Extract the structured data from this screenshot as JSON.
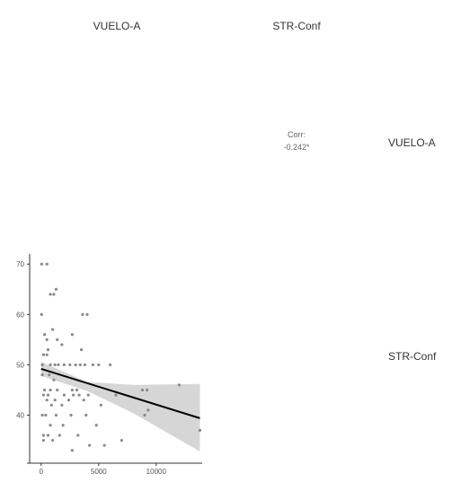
{
  "matrix": {
    "col_labels": [
      "VUELO-A",
      "STR-Conf"
    ],
    "row_labels": [
      "VUELO-A",
      "STR-Conf"
    ],
    "corr_title": "Corr:",
    "corr_value": "-0.242*"
  },
  "chart_data": {
    "type": "scatter",
    "xlabel": "",
    "ylabel": "",
    "xlim": [
      -1000,
      14000
    ],
    "ylim": [
      31,
      72
    ],
    "x_ticks": [
      "0",
      "5000",
      "10000"
    ],
    "y_ticks": [
      "40",
      "50",
      "60",
      "70"
    ],
    "grid": false,
    "points": [
      [
        50,
        70
      ],
      [
        500,
        70
      ],
      [
        40,
        60
      ],
      [
        300,
        56
      ],
      [
        200,
        52
      ],
      [
        500,
        52
      ],
      [
        100,
        50
      ],
      [
        800,
        50
      ],
      [
        1200,
        50
      ],
      [
        1500,
        50
      ],
      [
        2000,
        50
      ],
      [
        2500,
        50
      ],
      [
        3000,
        50
      ],
      [
        3400,
        50
      ],
      [
        3800,
        50
      ],
      [
        4500,
        50
      ],
      [
        5000,
        50
      ],
      [
        6000,
        50
      ],
      [
        100,
        48
      ],
      [
        700,
        48
      ],
      [
        1100,
        47
      ],
      [
        300,
        45
      ],
      [
        800,
        45
      ],
      [
        1400,
        45
      ],
      [
        2700,
        45
      ],
      [
        3100,
        45
      ],
      [
        200,
        44
      ],
      [
        600,
        44
      ],
      [
        2000,
        44
      ],
      [
        2800,
        44
      ],
      [
        3300,
        44
      ],
      [
        4100,
        44
      ],
      [
        6500,
        44
      ],
      [
        500,
        43
      ],
      [
        1200,
        43
      ],
      [
        2400,
        43
      ],
      [
        3700,
        43
      ],
      [
        900,
        42
      ],
      [
        1800,
        42
      ],
      [
        5200,
        42
      ],
      [
        100,
        40
      ],
      [
        400,
        40
      ],
      [
        1300,
        40
      ],
      [
        2600,
        40
      ],
      [
        3900,
        40
      ],
      [
        9000,
        40
      ],
      [
        800,
        38
      ],
      [
        1900,
        38
      ],
      [
        4800,
        38
      ],
      [
        200,
        36
      ],
      [
        600,
        36
      ],
      [
        1600,
        36
      ],
      [
        3200,
        36
      ],
      [
        200,
        35
      ],
      [
        1000,
        35
      ],
      [
        7000,
        35
      ],
      [
        4200,
        34
      ],
      [
        5500,
        34
      ],
      [
        2700,
        33
      ],
      [
        800,
        64
      ],
      [
        1100,
        64
      ],
      [
        1300,
        65
      ],
      [
        3600,
        60
      ],
      [
        4000,
        60
      ],
      [
        500,
        55
      ],
      [
        1400,
        55
      ],
      [
        1000,
        57
      ],
      [
        2700,
        56
      ],
      [
        3500,
        53
      ],
      [
        1800,
        54
      ],
      [
        600,
        53
      ],
      [
        8800,
        45
      ],
      [
        9200,
        45
      ],
      [
        12000,
        46
      ],
      [
        9300,
        41
      ],
      [
        13800,
        37
      ]
    ],
    "trend": {
      "x": [
        0,
        13800
      ],
      "y": [
        49.2,
        39.4
      ]
    },
    "ci_band": {
      "x": [
        0,
        4000,
        8000,
        13800
      ],
      "upper": [
        50.6,
        46.6,
        46.0,
        46.2
      ],
      "lower": [
        47.8,
        44.8,
        40.4,
        32.8
      ]
    },
    "colors": {
      "points": "#8a8a8a",
      "line": "#000000",
      "band": "#cfcfcf"
    }
  }
}
